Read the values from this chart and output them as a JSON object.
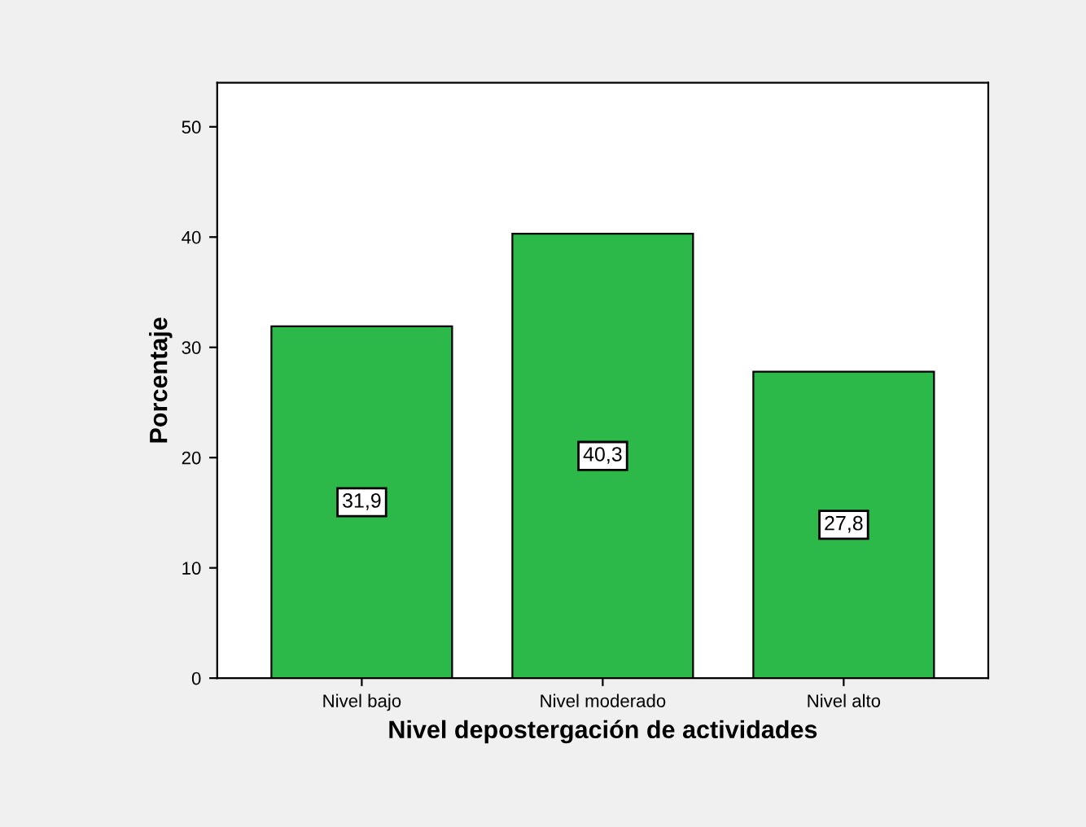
{
  "chart_data": {
    "type": "bar",
    "xlabel": "Nivel depostergación de actividades",
    "ylabel": "Porcentaje",
    "categories": [
      "Nivel bajo",
      "Nivel moderado",
      "Nivel alto"
    ],
    "values": [
      31.9,
      40.3,
      27.8
    ],
    "value_labels": [
      "31,9",
      "40,3",
      "27,8"
    ],
    "color": "#2db84a",
    "ylim": [
      0,
      54
    ],
    "yticks": [
      0,
      10,
      20,
      30,
      40,
      50
    ],
    "grid": false,
    "legend": false
  }
}
